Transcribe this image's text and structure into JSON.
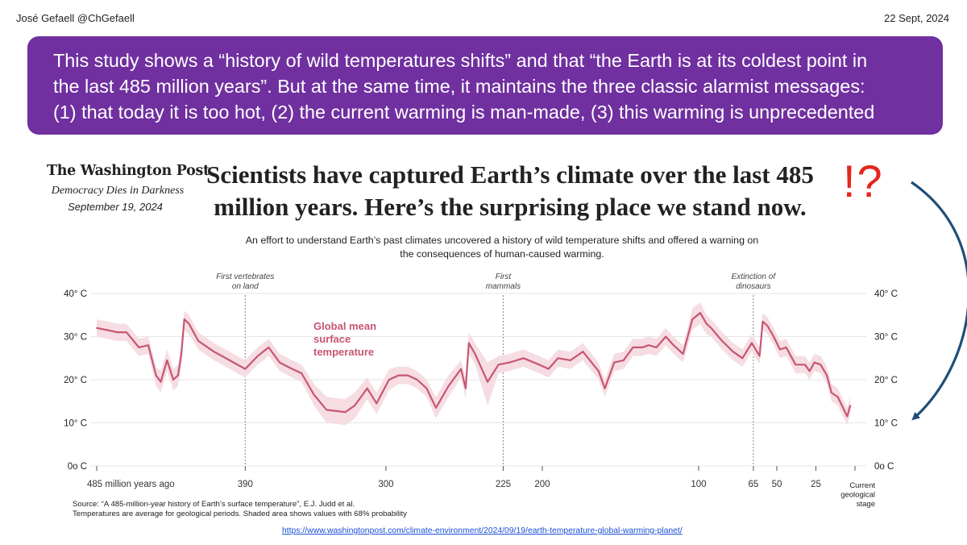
{
  "header": {
    "author": "José Gefaell @ChGefaell",
    "date": "22 Sept, 2024"
  },
  "banner": {
    "lines": [
      "This study shows a “history of wild temperatures shifts” and that “the Earth is at its coldest point in",
      "the last 485 million years”. But at the same time, it maintains the three classic alarmist messages:",
      "(1) that today it is too hot, (2) the current warming is man-made, (3) this warming is unprecedented"
    ],
    "background": "#7030a0"
  },
  "article": {
    "logo": "The Washington Post",
    "slogan": "Democracy Dies in Darkness",
    "date": "September 19, 2024",
    "headline": [
      "Scientists have captured Earth’s climate over the last 485",
      "million years. Here’s the surprising place we stand now."
    ],
    "exclamation": "!?",
    "subtitle": [
      "An effort to understand Earth’s past climates uncovered a history of wild temperature shifts and offered a warning on",
      "the consequences of human-caused warming."
    ]
  },
  "chart_data": {
    "type": "line",
    "series": [
      {
        "name": "Global mean surface temperature",
        "label_lines": [
          "Global mean",
          "surface",
          "temperature"
        ],
        "color": "#c75671",
        "band_color": "#f5dde3",
        "points": [
          {
            "x": 485,
            "y": 32,
            "lo": 30,
            "hi": 34
          },
          {
            "x": 478,
            "y": 31.5,
            "lo": 29.5,
            "hi": 33.5
          },
          {
            "x": 472,
            "y": 31,
            "lo": 29,
            "hi": 33
          },
          {
            "x": 466,
            "y": 31,
            "lo": 29,
            "hi": 33
          },
          {
            "x": 458,
            "y": 27.5,
            "lo": 25.5,
            "hi": 29.5
          },
          {
            "x": 452,
            "y": 28,
            "lo": 26,
            "hi": 30
          },
          {
            "x": 447,
            "y": 21,
            "lo": 18.5,
            "hi": 23
          },
          {
            "x": 444,
            "y": 19.5,
            "lo": 17,
            "hi": 22
          },
          {
            "x": 440,
            "y": 24.5,
            "lo": 22,
            "hi": 27
          },
          {
            "x": 436,
            "y": 20,
            "lo": 17.5,
            "hi": 22.5
          },
          {
            "x": 433,
            "y": 21,
            "lo": 18.5,
            "hi": 23.5
          },
          {
            "x": 431,
            "y": 25.5,
            "lo": 23,
            "hi": 28
          },
          {
            "x": 429,
            "y": 34,
            "lo": 31.5,
            "hi": 36
          },
          {
            "x": 426,
            "y": 33,
            "lo": 30.5,
            "hi": 35
          },
          {
            "x": 420,
            "y": 29,
            "lo": 27,
            "hi": 31
          },
          {
            "x": 410,
            "y": 26.5,
            "lo": 24.5,
            "hi": 28.5
          },
          {
            "x": 400,
            "y": 24.5,
            "lo": 22.5,
            "hi": 26.5
          },
          {
            "x": 390,
            "y": 22.5,
            "lo": 20.5,
            "hi": 24.5
          },
          {
            "x": 382,
            "y": 25.5,
            "lo": 23.5,
            "hi": 27.5
          },
          {
            "x": 375,
            "y": 27.5,
            "lo": 25.5,
            "hi": 29.5
          },
          {
            "x": 368,
            "y": 24,
            "lo": 22,
            "hi": 26
          },
          {
            "x": 360,
            "y": 22.5,
            "lo": 20.5,
            "hi": 24.5
          },
          {
            "x": 354,
            "y": 21.5,
            "lo": 19.5,
            "hi": 23.5
          },
          {
            "x": 346,
            "y": 16.5,
            "lo": 14,
            "hi": 19
          },
          {
            "x": 338,
            "y": 13,
            "lo": 10,
            "hi": 16
          },
          {
            "x": 326,
            "y": 12.5,
            "lo": 9.5,
            "hi": 15.5
          },
          {
            "x": 320,
            "y": 14,
            "lo": 11,
            "hi": 17
          },
          {
            "x": 312,
            "y": 18,
            "lo": 15.5,
            "hi": 20.5
          },
          {
            "x": 306,
            "y": 14.5,
            "lo": 12,
            "hi": 17
          },
          {
            "x": 298,
            "y": 20,
            "lo": 17.5,
            "hi": 22.5
          },
          {
            "x": 292,
            "y": 21,
            "lo": 19,
            "hi": 23
          },
          {
            "x": 286,
            "y": 21,
            "lo": 19,
            "hi": 23
          },
          {
            "x": 280,
            "y": 20,
            "lo": 18,
            "hi": 22
          },
          {
            "x": 274,
            "y": 18,
            "lo": 16,
            "hi": 20
          },
          {
            "x": 268,
            "y": 13.5,
            "lo": 11,
            "hi": 16
          },
          {
            "x": 260,
            "y": 18.5,
            "lo": 16,
            "hi": 21
          },
          {
            "x": 252,
            "y": 22.5,
            "lo": 20.5,
            "hi": 24.5
          },
          {
            "x": 249,
            "y": 18,
            "lo": 15.5,
            "hi": 20.5
          },
          {
            "x": 247,
            "y": 28.5,
            "lo": 26,
            "hi": 31
          },
          {
            "x": 243,
            "y": 26,
            "lo": 23.5,
            "hi": 28.5
          },
          {
            "x": 235,
            "y": 19.5,
            "lo": 14,
            "hi": 24
          },
          {
            "x": 228,
            "y": 23.5,
            "lo": 21.5,
            "hi": 25.5
          },
          {
            "x": 221,
            "y": 24,
            "lo": 22,
            "hi": 26
          },
          {
            "x": 212,
            "y": 25,
            "lo": 23,
            "hi": 27
          },
          {
            "x": 202,
            "y": 23.5,
            "lo": 21.5,
            "hi": 25.5
          },
          {
            "x": 196,
            "y": 22.5,
            "lo": 20.5,
            "hi": 24.5
          },
          {
            "x": 190,
            "y": 25,
            "lo": 23,
            "hi": 27
          },
          {
            "x": 182,
            "y": 24.5,
            "lo": 22.5,
            "hi": 26.5
          },
          {
            "x": 174,
            "y": 26.5,
            "lo": 24.5,
            "hi": 28.5
          },
          {
            "x": 164,
            "y": 22,
            "lo": 20,
            "hi": 24
          },
          {
            "x": 160,
            "y": 18,
            "lo": 16,
            "hi": 20
          },
          {
            "x": 154,
            "y": 24,
            "lo": 22,
            "hi": 26
          },
          {
            "x": 148,
            "y": 24.5,
            "lo": 22.5,
            "hi": 26.5
          },
          {
            "x": 142,
            "y": 27.5,
            "lo": 25.5,
            "hi": 29.5
          },
          {
            "x": 136,
            "y": 27.5,
            "lo": 25.5,
            "hi": 29.5
          },
          {
            "x": 132,
            "y": 28,
            "lo": 26,
            "hi": 30
          },
          {
            "x": 127,
            "y": 27.5,
            "lo": 25.5,
            "hi": 29.5
          },
          {
            "x": 121,
            "y": 30,
            "lo": 28,
            "hi": 32
          },
          {
            "x": 116,
            "y": 28,
            "lo": 26,
            "hi": 30
          },
          {
            "x": 110,
            "y": 26,
            "lo": 24,
            "hi": 28
          },
          {
            "x": 104,
            "y": 34,
            "lo": 31.5,
            "hi": 36.5
          },
          {
            "x": 99,
            "y": 35.5,
            "lo": 33,
            "hi": 38
          },
          {
            "x": 95,
            "y": 33,
            "lo": 30.5,
            "hi": 35
          },
          {
            "x": 92,
            "y": 32,
            "lo": 30,
            "hi": 34
          },
          {
            "x": 85,
            "y": 29,
            "lo": 27,
            "hi": 31
          },
          {
            "x": 78,
            "y": 26.5,
            "lo": 24.5,
            "hi": 28.5
          },
          {
            "x": 72,
            "y": 25,
            "lo": 23,
            "hi": 27
          },
          {
            "x": 66,
            "y": 28.5,
            "lo": 26.5,
            "hi": 30.5
          },
          {
            "x": 61,
            "y": 25.5,
            "lo": 23.5,
            "hi": 27.5
          },
          {
            "x": 59,
            "y": 33.5,
            "lo": 31.5,
            "hi": 35.5
          },
          {
            "x": 56,
            "y": 32.5,
            "lo": 30.5,
            "hi": 34.5
          },
          {
            "x": 52,
            "y": 30,
            "lo": 28,
            "hi": 32
          },
          {
            "x": 48,
            "y": 27,
            "lo": 25,
            "hi": 29
          },
          {
            "x": 44,
            "y": 27.5,
            "lo": 25.5,
            "hi": 29.5
          },
          {
            "x": 38,
            "y": 23.5,
            "lo": 21.5,
            "hi": 25.5
          },
          {
            "x": 32,
            "y": 23.5,
            "lo": 21.5,
            "hi": 25.5
          },
          {
            "x": 29,
            "y": 22,
            "lo": 20,
            "hi": 24
          },
          {
            "x": 26,
            "y": 24,
            "lo": 22,
            "hi": 26
          },
          {
            "x": 22,
            "y": 23.5,
            "lo": 21.5,
            "hi": 25.5
          },
          {
            "x": 18,
            "y": 21,
            "lo": 19,
            "hi": 23
          },
          {
            "x": 15,
            "y": 17,
            "lo": 15,
            "hi": 19
          },
          {
            "x": 11,
            "y": 16,
            "lo": 14,
            "hi": 18
          },
          {
            "x": 7,
            "y": 13,
            "lo": 11,
            "hi": 15
          },
          {
            "x": 5,
            "y": 11.5,
            "lo": 9.5,
            "hi": 13.5
          },
          {
            "x": 3,
            "y": 14,
            "lo": 12,
            "hi": 16
          }
        ]
      }
    ],
    "ylim": [
      0,
      40
    ],
    "xlim": [
      485,
      0
    ],
    "y_ticks": [
      {
        "value": 40,
        "label": "40° C"
      },
      {
        "value": 30,
        "label": "30° C"
      },
      {
        "value": 20,
        "label": "20° C"
      },
      {
        "value": 10,
        "label": "10° C"
      },
      {
        "value": 0,
        "label": "0o C"
      }
    ],
    "x_ticks": [
      {
        "value": 485,
        "label": "485 million years ago"
      },
      {
        "value": 390,
        "label": "390"
      },
      {
        "value": 300,
        "label": "300"
      },
      {
        "value": 225,
        "label": "225"
      },
      {
        "value": 200,
        "label": "200"
      },
      {
        "value": 100,
        "label": "100"
      },
      {
        "value": 65,
        "label": "65"
      },
      {
        "value": 50,
        "label": "50"
      },
      {
        "value": 25,
        "label": "25"
      },
      {
        "value": 0,
        "label": "Current geological stage"
      }
    ],
    "annotations": [
      {
        "x": 390,
        "lines": [
          "First vertebrates",
          "on land"
        ]
      },
      {
        "x": 225,
        "lines": [
          "First",
          "mammals"
        ]
      },
      {
        "x": 65,
        "lines": [
          "Extinction of",
          "dinosaurs"
        ]
      }
    ],
    "grid": true
  },
  "source": {
    "lines": [
      "Source: “A 485-million-year history of Earth’s surface temperature”, E.J. Judd et al.",
      "Temperatures are average for geological periods. Shaded area shows values with 68% probability"
    ],
    "link": "https://www.washingtonpost.com/climate-environment/2024/09/19/earth-temperature-global-warming-planet/"
  },
  "colors": {
    "accent_red": "#e3261d",
    "arrow": "#1f4e79",
    "link": "#1a4fd6"
  }
}
